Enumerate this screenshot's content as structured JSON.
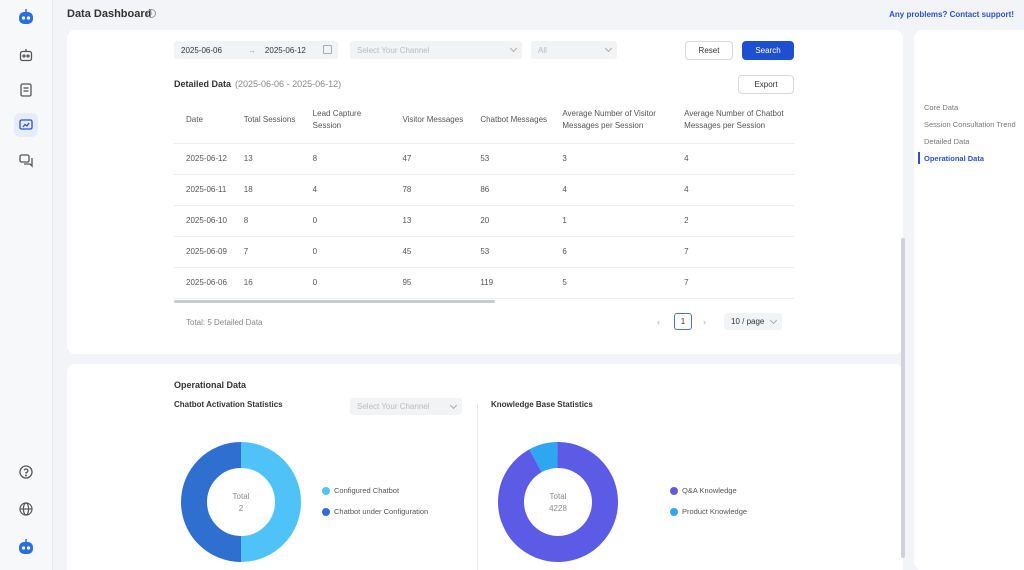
{
  "header": {
    "title": "Data Dashboard",
    "support_link": "Any problems? Contact support!"
  },
  "filters": {
    "date_start": "2025-06-06",
    "date_end": "2025-06-12",
    "channel_placeholder": "Select Your Channel",
    "scope_value": "All",
    "reset_label": "Reset",
    "search_label": "Search"
  },
  "detailed": {
    "title": "Detailed Data",
    "range": "(2025-06-06 - 2025-06-12)",
    "export_label": "Export",
    "columns": [
      "Date",
      "Total Sessions",
      "Lead Capture Session",
      "Visitor Messages",
      "Chatbot Messages",
      "Average Number of Visitor Messages per Session",
      "Average Number of Chatbot Messages per Session"
    ],
    "rows": [
      [
        "2025-06-12",
        "13",
        "8",
        "47",
        "53",
        "3",
        "4"
      ],
      [
        "2025-06-11",
        "18",
        "4",
        "78",
        "86",
        "4",
        "4"
      ],
      [
        "2025-06-10",
        "8",
        "0",
        "13",
        "20",
        "1",
        "2"
      ],
      [
        "2025-06-09",
        "7",
        "0",
        "45",
        "53",
        "6",
        "7"
      ],
      [
        "2025-06-06",
        "16",
        "0",
        "95",
        "119",
        "5",
        "7"
      ]
    ],
    "total_text": "Total: 5 Detailed Data",
    "page": "1",
    "page_size": "10 / page"
  },
  "operational": {
    "title": "Operational Data",
    "activation": {
      "title": "Chatbot Activation Statistics",
      "channel_placeholder": "Select Your Channel",
      "total_label": "Total",
      "total_value": "2",
      "legend": [
        {
          "label": "Configured Chatbot",
          "color": "#4fc3f7",
          "value": 1
        },
        {
          "label": "Chatbot under Configuration",
          "color": "#2f6fd0",
          "value": 1
        }
      ]
    },
    "knowledge": {
      "title": "Knowledge Base Statistics",
      "total_label": "Total",
      "total_value": "4228",
      "legend": [
        {
          "label": "Q&A Knowledge",
          "color": "#5b5be6",
          "value": 3900
        },
        {
          "label": "Product Knowledge",
          "color": "#2ea7f0",
          "value": 328
        }
      ]
    }
  },
  "toc": {
    "items": [
      "Core Data",
      "Session Consultation Trend",
      "Detailed Data",
      "Operational Data"
    ],
    "active": "Operational Data"
  },
  "colors": {
    "accent": "#1f4fd1",
    "link": "#2a53cc"
  }
}
